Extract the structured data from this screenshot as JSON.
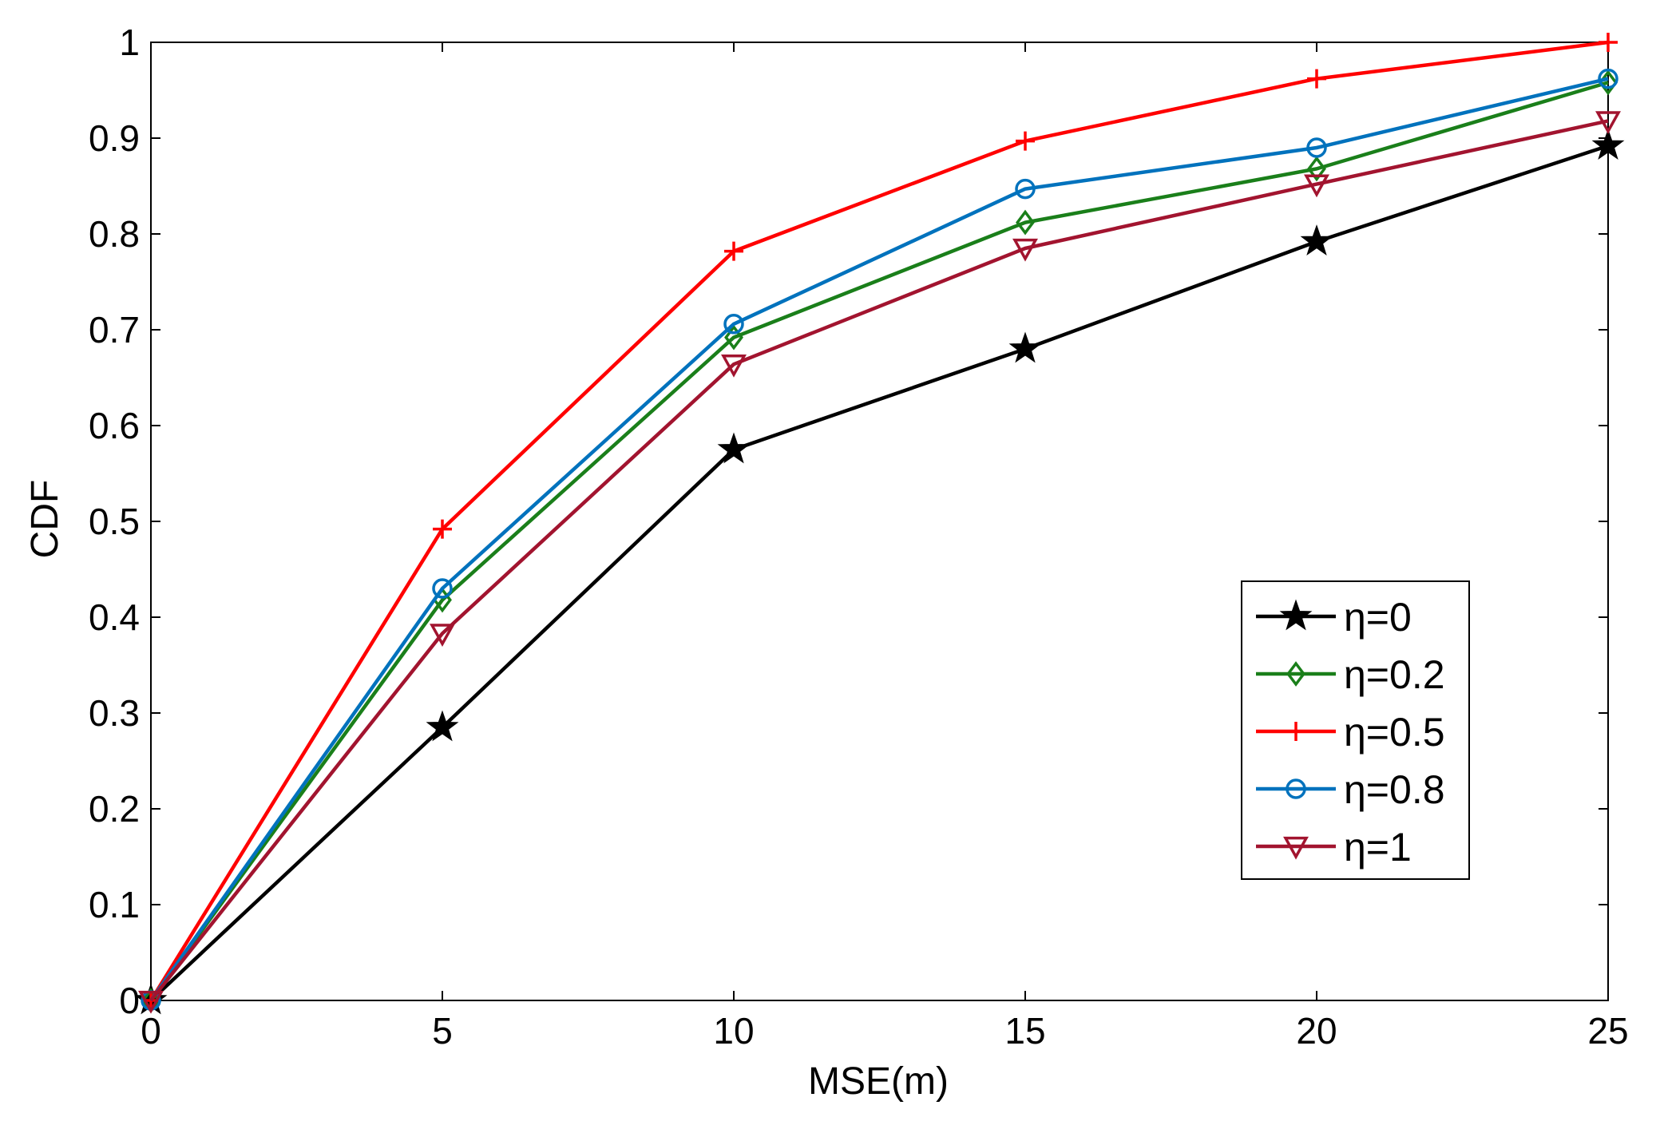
{
  "chart_data": {
    "type": "line",
    "title": "",
    "xlabel": "MSE(m)",
    "ylabel": "CDF",
    "xlim": [
      0,
      25
    ],
    "ylim": [
      0,
      1
    ],
    "xticks": [
      "0",
      "5",
      "10",
      "15",
      "20",
      "25"
    ],
    "yticks": [
      "0",
      "0.1",
      "0.2",
      "0.3",
      "0.4",
      "0.5",
      "0.6",
      "0.7",
      "0.8",
      "0.9",
      "1"
    ],
    "grid": false,
    "legend_position": "right-center",
    "x": [
      0,
      5,
      10,
      15,
      20,
      25
    ],
    "series": [
      {
        "name": "η=0",
        "color": "#000000",
        "marker": "star",
        "values": [
          0,
          0.285,
          0.575,
          0.68,
          0.792,
          0.892
        ]
      },
      {
        "name": "η=0.2",
        "color": "#1a7f1a",
        "marker": "diamond",
        "values": [
          0,
          0.418,
          0.692,
          0.812,
          0.868,
          0.958
        ]
      },
      {
        "name": "η=0.5",
        "color": "#ff0000",
        "marker": "plus",
        "values": [
          0,
          0.492,
          0.782,
          0.897,
          0.962,
          1.0
        ]
      },
      {
        "name": "η=0.8",
        "color": "#0072bd",
        "marker": "circle",
        "values": [
          0,
          0.43,
          0.706,
          0.847,
          0.89,
          0.962
        ]
      },
      {
        "name": "η=1",
        "color": "#a2142f",
        "marker": "triangle-down",
        "values": [
          0,
          0.383,
          0.664,
          0.785,
          0.852,
          0.918
        ]
      }
    ]
  }
}
